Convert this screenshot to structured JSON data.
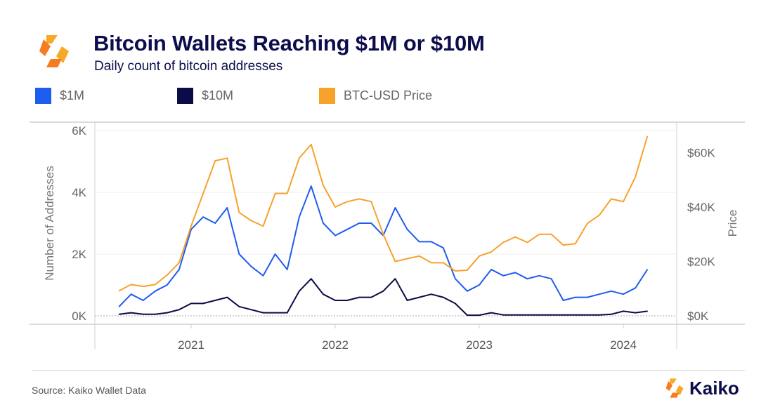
{
  "header": {
    "title": "Bitcoin Wallets Reaching $1M or $10M",
    "subtitle": "Daily count of bitcoin addresses",
    "logo_icon": "kaiko-logo-icon"
  },
  "footer": {
    "source": "Source: Kaiko Wallet Data",
    "brand": "Kaiko"
  },
  "chart_data": {
    "type": "line",
    "title": "Bitcoin Wallets Reaching $1M or $10M",
    "subtitle": "Daily count of bitcoin addresses",
    "ylabel": "Number of Addresses",
    "y2label": "Price",
    "ylim": [
      0,
      6000
    ],
    "y2lim": [
      0,
      67000
    ],
    "yticks": [
      "0K",
      "2K",
      "4K",
      "6K"
    ],
    "y2ticks": [
      "$0K",
      "$20K",
      "$40K",
      "$60K"
    ],
    "xticks": [
      "2021",
      "2022",
      "2023",
      "2024"
    ],
    "legend_position": "top-left",
    "grid": true,
    "x": [
      "2020-07",
      "2020-08",
      "2020-09",
      "2020-10",
      "2020-11",
      "2020-12",
      "2021-01",
      "2021-02",
      "2021-03",
      "2021-04",
      "2021-05",
      "2021-06",
      "2021-07",
      "2021-08",
      "2021-09",
      "2021-10",
      "2021-11",
      "2021-12",
      "2022-01",
      "2022-02",
      "2022-03",
      "2022-04",
      "2022-05",
      "2022-06",
      "2022-07",
      "2022-08",
      "2022-09",
      "2022-10",
      "2022-11",
      "2022-12",
      "2023-01",
      "2023-02",
      "2023-03",
      "2023-04",
      "2023-05",
      "2023-06",
      "2023-07",
      "2023-08",
      "2023-09",
      "2023-10",
      "2023-11",
      "2023-12",
      "2024-01",
      "2024-02",
      "2024-03"
    ],
    "series": [
      {
        "name": "$1M",
        "axis": "left",
        "color": "#1f5cf0",
        "values": [
          300,
          700,
          500,
          800,
          1000,
          1500,
          2800,
          3200,
          3000,
          3500,
          2000,
          1600,
          1300,
          2000,
          1500,
          3200,
          4200,
          3000,
          2600,
          2800,
          3000,
          3000,
          2600,
          3500,
          2800,
          2400,
          2400,
          2200,
          1200,
          800,
          1000,
          1500,
          1300,
          1400,
          1200,
          1300,
          1200,
          500,
          600,
          600,
          700,
          800,
          700,
          900,
          1500
        ]
      },
      {
        "name": "$10M",
        "axis": "left",
        "color": "#0b0b48",
        "values": [
          50,
          100,
          50,
          50,
          100,
          200,
          400,
          400,
          500,
          600,
          300,
          200,
          100,
          100,
          100,
          800,
          1200,
          700,
          500,
          500,
          600,
          600,
          800,
          1200,
          500,
          600,
          700,
          600,
          400,
          20,
          20,
          100,
          30,
          30,
          30,
          30,
          30,
          30,
          30,
          30,
          30,
          50,
          150,
          100,
          150
        ]
      },
      {
        "name": "BTC-USD Price",
        "axis": "right",
        "color": "#f7a22b",
        "values": [
          9200,
          11500,
          10800,
          11500,
          15000,
          19500,
          33000,
          45000,
          57000,
          58000,
          38000,
          35000,
          33000,
          45000,
          45000,
          58000,
          63000,
          48000,
          40000,
          42000,
          43000,
          42000,
          30000,
          20000,
          21000,
          22000,
          19500,
          19500,
          16500,
          16800,
          22000,
          23500,
          27000,
          29000,
          27000,
          30000,
          30000,
          26000,
          26500,
          34000,
          37000,
          43000,
          42000,
          51000,
          66000
        ]
      }
    ]
  }
}
